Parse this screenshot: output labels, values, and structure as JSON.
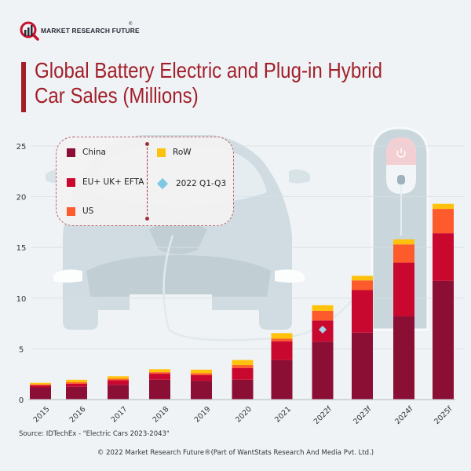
{
  "brand": {
    "name": "MARKET RESEARCH FUTURE",
    "registered": "®",
    "logo_icon": "magnifier-chart-icon"
  },
  "header": {
    "title_line1": "Global Battery Electric and Plug-in Hybrid",
    "title_line2": "Car Sales (Millions)"
  },
  "colors": {
    "china": "#8b0e35",
    "eu": "#c8082f",
    "us": "#fd5b2c",
    "row": "#fec20d",
    "marker": "#a7d4ec",
    "title": "#a21f2a",
    "background": "#eff3f6",
    "illustration": "#c9d6dc"
  },
  "legend": {
    "items": [
      {
        "label": "China",
        "key": "china",
        "shape": "square"
      },
      {
        "label": "EU+ UK+ EFTA",
        "key": "eu",
        "shape": "square"
      },
      {
        "label": "US",
        "key": "us",
        "shape": "square"
      },
      {
        "label": "RoW",
        "key": "row",
        "shape": "square"
      },
      {
        "label": "2022 Q1-Q3",
        "key": "marker",
        "shape": "diamond"
      }
    ]
  },
  "chart_data": {
    "type": "bar",
    "stacked": true,
    "title": "Global Battery Electric and Plug-in Hybrid Car Sales (Millions)",
    "xlabel": "",
    "ylabel": "",
    "ylim": [
      0,
      25
    ],
    "yticks": [
      "0",
      "5",
      "10",
      "15",
      "20",
      "25"
    ],
    "grid": true,
    "legend_position": "top-left",
    "categories": [
      "2015",
      "2016",
      "2017",
      "2018",
      "2019",
      "2020",
      "2021",
      "2022f",
      "2023f",
      "2024f",
      "2025f"
    ],
    "series": [
      {
        "name": "China",
        "key": "china",
        "values": [
          1.2,
          1.25,
          1.45,
          1.95,
          1.85,
          1.95,
          3.9,
          5.7,
          6.6,
          8.2,
          11.7
        ]
      },
      {
        "name": "EU+ UK+ EFTA",
        "key": "eu",
        "values": [
          0.2,
          0.3,
          0.45,
          0.6,
          0.55,
          1.15,
          1.85,
          2.1,
          4.2,
          5.3,
          4.7
        ]
      },
      {
        "name": "US",
        "key": "us",
        "values": [
          0.1,
          0.15,
          0.15,
          0.15,
          0.2,
          0.3,
          0.25,
          0.95,
          0.95,
          1.8,
          2.4
        ]
      },
      {
        "name": "RoW",
        "key": "row",
        "values": [
          0.15,
          0.25,
          0.25,
          0.3,
          0.35,
          0.5,
          0.55,
          0.55,
          0.45,
          0.5,
          0.5
        ]
      }
    ],
    "markers": [
      {
        "name": "2022 Q1-Q3",
        "category": "2022f",
        "value": 6.9
      }
    ]
  },
  "footer": {
    "source": "Source: IDTechEx - \"Electric Cars 2023-2043\"",
    "copyright": "© 2022 Market Research Future®(Part of WantStats Research And Media Pvt. Ltd.)"
  }
}
